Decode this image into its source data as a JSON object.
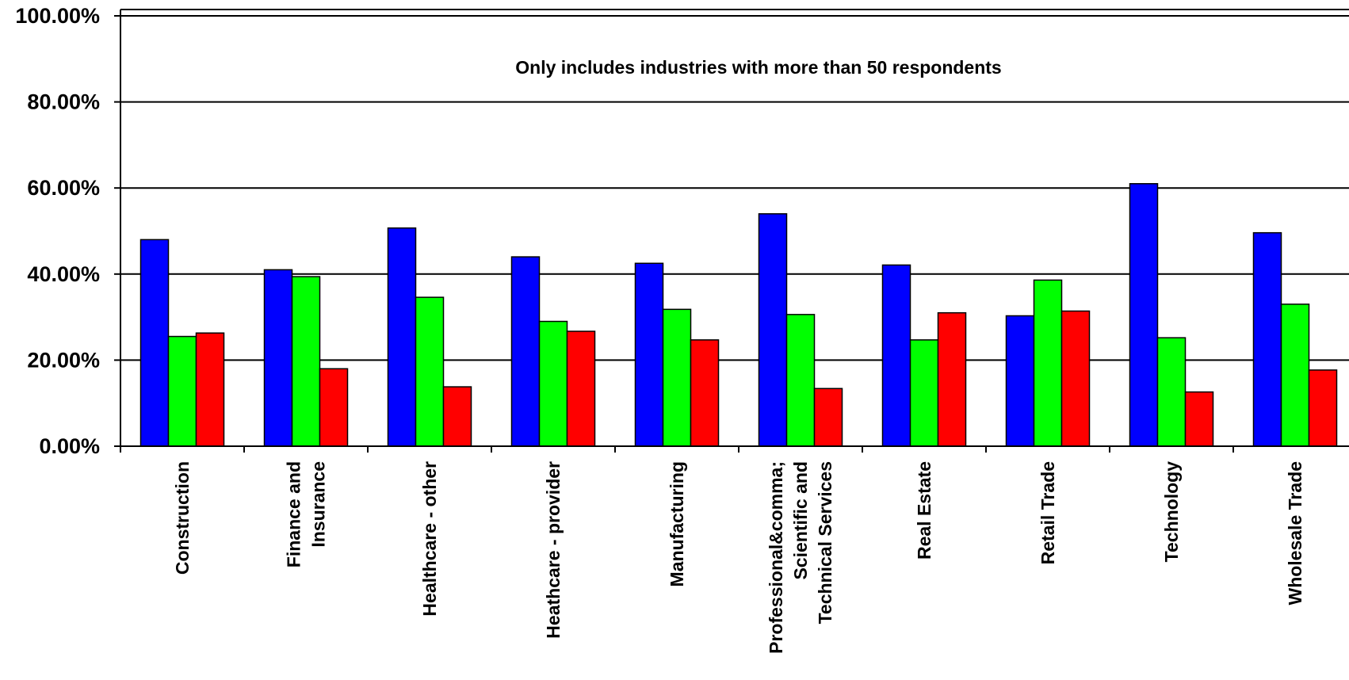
{
  "chart_data": {
    "type": "bar",
    "annotation": "Only includes industries with more than 50 respondents",
    "categories": [
      [
        "Construction"
      ],
      [
        "Finance and",
        "Insurance"
      ],
      [
        "Healthcare - other"
      ],
      [
        "Heathcare - provider"
      ],
      [
        "Manufacturing"
      ],
      [
        "Professional&comma;",
        "Scientific and",
        "Technical Services"
      ],
      [
        "Real Estate"
      ],
      [
        "Retail Trade"
      ],
      [
        "Technology"
      ],
      [
        "Wholesale Trade"
      ]
    ],
    "y_ticks": [
      "0.00%",
      "20.00%",
      "40.00%",
      "60.00%",
      "80.00%",
      "100.00%"
    ],
    "ylim": [
      0,
      100
    ],
    "grid": true,
    "legend": "none",
    "series": [
      {
        "color": "#0000ff",
        "values": [
          48.0,
          41.0,
          50.7,
          44.0,
          42.5,
          54.0,
          42.1,
          30.3,
          61.0,
          49.6
        ]
      },
      {
        "color": "#00ff00",
        "values": [
          25.5,
          39.4,
          34.6,
          29.0,
          31.8,
          30.6,
          24.7,
          38.6,
          25.2,
          33.0
        ]
      },
      {
        "color": "#ff0000",
        "values": [
          26.3,
          18.0,
          13.8,
          26.7,
          24.7,
          13.4,
          31.0,
          31.4,
          12.6,
          17.7
        ]
      }
    ]
  }
}
